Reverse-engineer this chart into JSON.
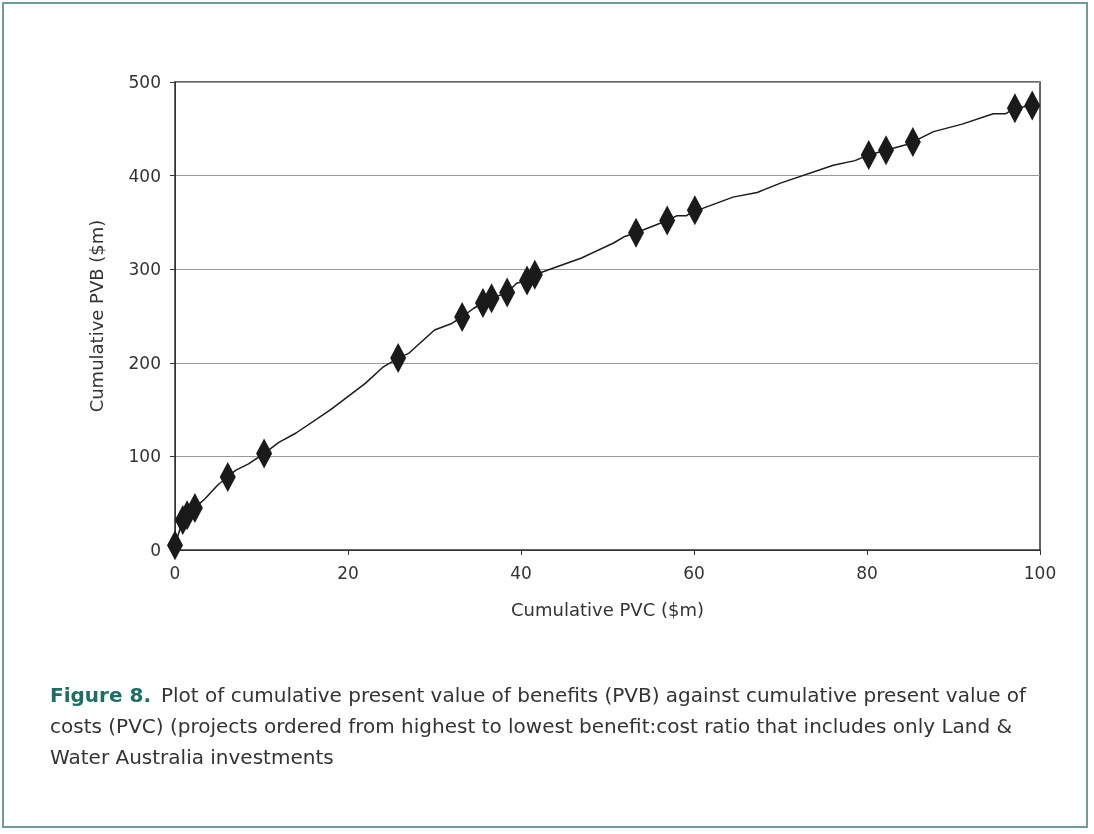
{
  "chart_data": {
    "type": "line",
    "xlabel": "Cumulative PVC ($m)",
    "ylabel": "Cumulative PVB ($m)",
    "annotations": [
      "Figure 8.",
      "Plot of cumulative present value of benefits (PVB) against cumulative present value of costs (PVC) (projects ordered from highest to lowest benefit:cost ratio that includes only Land & Water Australia investments"
    ],
    "series": [
      {
        "color": "#1a1a1a",
        "marker": "none",
        "line_style": "solid",
        "x": [
          0,
          0.9,
          1.4,
          2.3,
          3.5,
          5,
          6.1,
          7,
          8.5,
          10.3,
          12,
          14,
          18,
          22,
          24,
          25.8,
          27,
          30,
          32,
          33.2,
          34.5,
          35.6,
          36.6,
          38.4,
          39.5,
          40.7,
          41.6,
          44,
          47,
          50.7,
          52,
          53.3,
          56.9,
          58,
          59.1,
          60.1,
          61,
          64.5,
          67.3,
          70,
          76.1,
          78.6,
          80.2,
          82.2,
          84.5,
          85.3,
          87.7,
          91,
          94.6,
          96,
          97.1,
          99.1
        ],
        "values": [
          5,
          32,
          37,
          45,
          55,
          70,
          78,
          85,
          92,
          103,
          115,
          125,
          150,
          178,
          195,
          205,
          210,
          235,
          242,
          249,
          258,
          264,
          269,
          275,
          285,
          288,
          294,
          302,
          312,
          328,
          335,
          339,
          352,
          357,
          357,
          363,
          365,
          377,
          382,
          392,
          411,
          416,
          422,
          427,
          433,
          436,
          447,
          455,
          466,
          466,
          472,
          475
        ]
      },
      {
        "type": "scatter",
        "color": "#1a1a1a",
        "marker": "diamond",
        "x": [
          0,
          0.9,
          1.4,
          2.3,
          6.1,
          10.3,
          25.8,
          33.2,
          35.6,
          36.6,
          38.4,
          40.7,
          41.6,
          53.3,
          56.9,
          60.1,
          80.2,
          82.2,
          85.3,
          97.1,
          99.1
        ],
        "values": [
          5,
          32,
          37,
          45,
          78,
          103,
          205,
          249,
          264,
          269,
          275,
          288,
          294,
          339,
          352,
          363,
          422,
          427,
          436,
          472,
          475
        ]
      }
    ],
    "xlim": [
      0,
      100
    ],
    "xticks": [
      0,
      20,
      40,
      60,
      80,
      100
    ],
    "ylim": [
      0,
      500
    ],
    "yticks": [
      0,
      100,
      200,
      300,
      400,
      500
    ],
    "grid": "y"
  }
}
